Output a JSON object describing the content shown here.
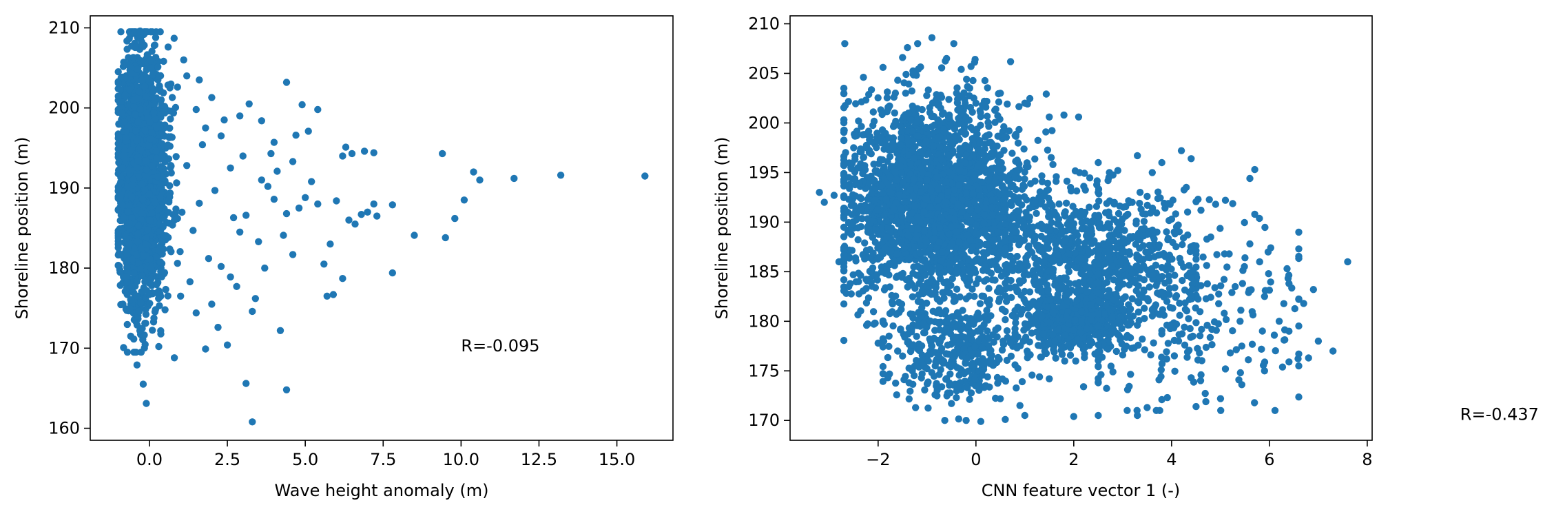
{
  "chart_data": [
    {
      "type": "scatter",
      "title": "",
      "xlabel": "Wave height anomaly (m)",
      "ylabel": "Shoreline position (m)",
      "xlim": [
        -1.9,
        16.8
      ],
      "ylim": [
        158.5,
        211.5
      ],
      "xticks": [
        0.0,
        2.5,
        5.0,
        7.5,
        10.0,
        12.5,
        15.0
      ],
      "xtick_labels": [
        "0.0",
        "2.5",
        "5.0",
        "7.5",
        "10.0",
        "12.5",
        "15.0"
      ],
      "yticks": [
        160,
        170,
        180,
        190,
        200,
        210
      ],
      "ytick_labels": [
        "160",
        "170",
        "180",
        "190",
        "200",
        "210"
      ],
      "marker_color": "#1f77b4",
      "grid": false,
      "annotation": {
        "text": "R=-0.095",
        "x": 10.0,
        "y": 170.3
      },
      "cluster": {
        "x_mean": -0.35,
        "x_sd": 0.42,
        "x_min": -1.0,
        "y_mean": 191,
        "y_sd": 7.5,
        "y_min": 169.5,
        "y_max": 209.5
      },
      "points": [
        [
          15.9,
          191.5
        ],
        [
          13.2,
          191.6
        ],
        [
          11.7,
          191.2
        ],
        [
          10.6,
          191.0
        ],
        [
          10.4,
          192.0
        ],
        [
          9.4,
          194.3
        ],
        [
          10.1,
          188.5
        ],
        [
          9.8,
          186.2
        ],
        [
          9.5,
          183.8
        ],
        [
          8.5,
          184.1
        ],
        [
          7.8,
          187.9
        ],
        [
          7.8,
          179.4
        ],
        [
          7.3,
          186.5
        ],
        [
          7.2,
          188.0
        ],
        [
          7.0,
          187.0
        ],
        [
          6.9,
          194.6
        ],
        [
          7.2,
          194.4
        ],
        [
          6.5,
          194.3
        ],
        [
          6.3,
          195.1
        ],
        [
          6.2,
          194.0
        ],
        [
          6.4,
          186.0
        ],
        [
          6.8,
          186.7
        ],
        [
          6.6,
          185.5
        ],
        [
          6.0,
          188.4
        ],
        [
          6.2,
          178.7
        ],
        [
          5.9,
          176.7
        ],
        [
          5.7,
          176.5
        ],
        [
          5.8,
          183.0
        ],
        [
          5.6,
          180.5
        ],
        [
          5.4,
          188.0
        ],
        [
          5.4,
          199.8
        ],
        [
          5.1,
          197.1
        ],
        [
          4.9,
          200.4
        ],
        [
          4.7,
          196.6
        ],
        [
          4.4,
          203.2
        ],
        [
          4.6,
          193.3
        ],
        [
          4.4,
          186.8
        ],
        [
          4.6,
          181.7
        ],
        [
          4.2,
          172.2
        ],
        [
          4.4,
          164.8
        ],
        [
          3.3,
          160.8
        ],
        [
          3.1,
          165.6
        ],
        [
          3.4,
          176.2
        ],
        [
          3.7,
          180.0
        ],
        [
          3.8,
          190.2
        ],
        [
          3.9,
          194.3
        ],
        [
          4.0,
          188.6
        ],
        [
          3.2,
          200.5
        ],
        [
          3.6,
          198.4
        ],
        [
          2.5,
          170.4
        ],
        [
          2.2,
          172.6
        ],
        [
          1.8,
          169.9
        ],
        [
          1.5,
          174.4
        ],
        [
          2.9,
          184.5
        ],
        [
          2.6,
          192.5
        ],
        [
          2.3,
          196.5
        ],
        [
          2.0,
          201.3
        ],
        [
          1.6,
          203.5
        ],
        [
          1.2,
          204.0
        ],
        [
          0.8,
          168.8
        ],
        [
          0.3,
          170.2
        ],
        [
          -0.2,
          165.5
        ],
        [
          -0.1,
          163.1
        ],
        [
          -0.4,
          167.9
        ],
        [
          -0.6,
          171.5
        ],
        [
          0.5,
          174.8
        ],
        [
          1.0,
          176.5
        ],
        [
          1.3,
          178.3
        ],
        [
          1.9,
          181.2
        ],
        [
          2.7,
          186.3
        ],
        [
          3.0,
          194.0
        ],
        [
          2.4,
          198.5
        ],
        [
          1.1,
          206.0
        ],
        [
          0.6,
          207.6
        ],
        [
          0.2,
          208.8
        ],
        [
          -0.3,
          209.6
        ],
        [
          0.9,
          202.6
        ],
        [
          1.7,
          195.4
        ],
        [
          2.1,
          189.7
        ],
        [
          2.8,
          177.7
        ],
        [
          3.5,
          183.3
        ],
        [
          4.1,
          192.1
        ],
        [
          4.8,
          187.5
        ],
        [
          5.2,
          190.8
        ],
        [
          3.3,
          174.6
        ],
        [
          2.0,
          175.5
        ],
        [
          1.4,
          184.7
        ],
        [
          1.6,
          188.1
        ],
        [
          1.8,
          197.5
        ],
        [
          2.3,
          180.2
        ],
        [
          2.6,
          178.9
        ],
        [
          4.0,
          195.7
        ],
        [
          5.0,
          188.8
        ],
        [
          3.6,
          191.0
        ],
        [
          4.3,
          184.1
        ],
        [
          1.2,
          192.8
        ],
        [
          0.9,
          186.2
        ],
        [
          1.5,
          199.8
        ],
        [
          2.9,
          199.0
        ],
        [
          3.1,
          186.6
        ]
      ]
    },
    {
      "type": "scatter",
      "title": "",
      "xlabel": "CNN feature vector 1 (-)",
      "ylabel": "Shoreline position (m)",
      "xlim": [
        -3.8,
        8.1
      ],
      "ylim": [
        168.0,
        210.8
      ],
      "xticks": [
        -2,
        0,
        2,
        4,
        6,
        8
      ],
      "xtick_labels": [
        "−2",
        "0",
        "2",
        "4",
        "6",
        "8"
      ],
      "yticks": [
        170,
        175,
        180,
        185,
        190,
        195,
        200,
        205,
        210
      ],
      "ytick_labels": [
        "170",
        "175",
        "180",
        "185",
        "190",
        "195",
        "200",
        "205",
        "210"
      ],
      "marker_color": "#1f77b4",
      "grid": false,
      "annotation": {
        "text": "R=-0.437",
        "x": 9.9,
        "y": 170.6
      },
      "clusters": [
        {
          "n": 2400,
          "x_mean": -0.8,
          "x_sd": 0.95,
          "x_min": -2.7,
          "x_max": 2.2,
          "y_mean": 192,
          "y_sd": 5.2,
          "y_min": 172,
          "y_max": 208
        },
        {
          "n": 550,
          "x_mean": 2.0,
          "x_sd": 0.55,
          "x_min": 0.8,
          "x_max": 3.5,
          "y_mean": 180,
          "y_sd": 1.4,
          "y_min": 176,
          "y_max": 184
        },
        {
          "n": 700,
          "x_mean": 2.4,
          "x_sd": 1.0,
          "x_min": 0.6,
          "x_max": 4.5,
          "y_mean": 186.5,
          "y_sd": 3.2,
          "y_min": 178,
          "y_max": 195
        },
        {
          "n": 350,
          "x_mean": -0.4,
          "x_sd": 0.7,
          "x_min": -1.9,
          "x_max": 1.5,
          "y_mean": 177,
          "y_sd": 2.4,
          "y_min": 170,
          "y_max": 182
        },
        {
          "n": 260,
          "x_mean": 4.2,
          "x_sd": 1.3,
          "x_min": 2.5,
          "x_max": 6.6,
          "y_mean": 181,
          "y_sd": 4.8,
          "y_min": 171,
          "y_max": 193
        }
      ],
      "points": [
        [
          7.6,
          186.0
        ],
        [
          7.3,
          177.0
        ],
        [
          7.0,
          178.0
        ],
        [
          6.8,
          176.3
        ],
        [
          6.6,
          176.7
        ],
        [
          6.4,
          175.9
        ],
        [
          6.4,
          183.8
        ],
        [
          6.4,
          179.0
        ],
        [
          6.2,
          180.0
        ],
        [
          6.1,
          178.6
        ],
        [
          5.9,
          182.5
        ],
        [
          5.9,
          175.0
        ],
        [
          5.7,
          195.3
        ],
        [
          5.6,
          194.4
        ],
        [
          5.7,
          190.8
        ],
        [
          5.6,
          187.8
        ],
        [
          5.5,
          186.4
        ],
        [
          5.3,
          183.5
        ],
        [
          5.2,
          176.8
        ],
        [
          5.1,
          175.2
        ],
        [
          5.0,
          172.2
        ],
        [
          4.7,
          171.9
        ],
        [
          4.5,
          171.4
        ],
        [
          4.4,
          174.3
        ],
        [
          4.2,
          197.2
        ],
        [
          4.4,
          196.4
        ],
        [
          4.3,
          193.5
        ],
        [
          4.9,
          191.8
        ],
        [
          5.1,
          192.2
        ],
        [
          4.6,
          191.2
        ],
        [
          3.8,
          196.0
        ],
        [
          3.3,
          196.7
        ],
        [
          2.9,
          195.2
        ],
        [
          2.5,
          196.0
        ],
        [
          2.1,
          200.6
        ],
        [
          1.8,
          200.8
        ],
        [
          1.5,
          200.6
        ],
        [
          1.0,
          202.0
        ],
        [
          0.5,
          203.0
        ],
        [
          -0.1,
          205.7
        ],
        [
          -0.3,
          205.4
        ],
        [
          -0.6,
          206.5
        ],
        [
          -0.9,
          208.6
        ],
        [
          -1.4,
          207.6
        ],
        [
          -1.5,
          206.6
        ],
        [
          -1.9,
          205.6
        ],
        [
          -2.3,
          204.6
        ],
        [
          -2.4,
          200.2
        ],
        [
          -2.5,
          197.5
        ],
        [
          -2.6,
          194.5
        ],
        [
          -2.9,
          192.7
        ],
        [
          -3.2,
          193.0
        ],
        [
          -3.1,
          192.0
        ],
        [
          -2.6,
          192.3
        ],
        [
          -2.8,
          186.0
        ],
        [
          -2.7,
          185.5
        ],
        [
          -2.6,
          183.5
        ],
        [
          -2.4,
          184.0
        ],
        [
          -2.0,
          177.8
        ],
        [
          -1.8,
          174.3
        ],
        [
          -1.5,
          176.5
        ],
        [
          -1.3,
          175.0
        ],
        [
          -0.9,
          177.5
        ],
        [
          -0.7,
          173.4
        ],
        [
          -0.4,
          172.3
        ],
        [
          -0.2,
          170.0
        ],
        [
          0.1,
          169.9
        ],
        [
          0.6,
          170.1
        ],
        [
          0.9,
          171.5
        ],
        [
          1.0,
          170.5
        ],
        [
          2.0,
          170.4
        ],
        [
          2.5,
          170.5
        ],
        [
          3.3,
          170.5
        ],
        [
          3.5,
          171.3
        ],
        [
          3.8,
          172.1
        ],
        [
          2.2,
          173.4
        ],
        [
          1.3,
          174.4
        ],
        [
          0.2,
          173.5
        ],
        [
          2.8,
          174.9
        ],
        [
          3.1,
          173.1
        ],
        [
          6.9,
          183.2
        ],
        [
          6.7,
          181.8
        ],
        [
          6.3,
          178.1
        ],
        [
          5.4,
          180.0
        ],
        [
          5.8,
          186.0
        ],
        [
          4.8,
          188.5
        ],
        [
          4.0,
          190.3
        ],
        [
          3.7,
          189.0
        ],
        [
          3.5,
          192.6
        ],
        [
          4.6,
          183.6
        ],
        [
          4.1,
          179.7
        ],
        [
          3.9,
          176.2
        ],
        [
          3.4,
          178.2
        ],
        [
          3.0,
          176.6
        ],
        [
          2.7,
          177.2
        ],
        [
          1.6,
          176.9
        ],
        [
          0.8,
          175.6
        ],
        [
          -0.5,
          171.7
        ],
        [
          -1.1,
          174.7
        ],
        [
          -1.6,
          177.0
        ]
      ]
    }
  ]
}
